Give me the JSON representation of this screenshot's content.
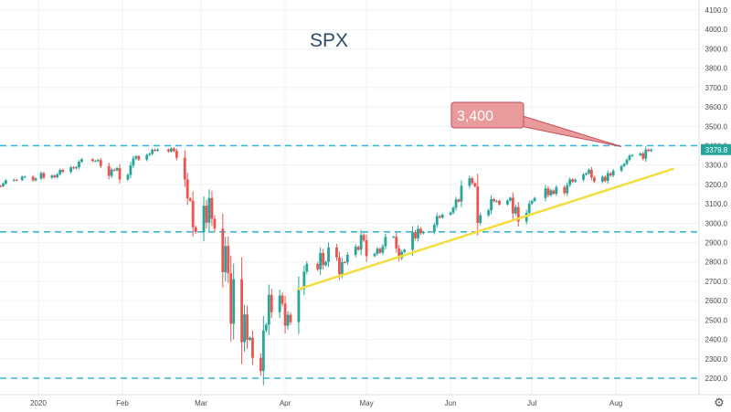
{
  "chart_data": {
    "type": "candlestick",
    "title": "SPX",
    "ylim": [
      2150,
      4150
    ],
    "yticks": [
      "4100.0",
      "4000.0",
      "3900.0",
      "3800.0",
      "3700.0",
      "3600.0",
      "3500.0",
      "3400.0",
      "3300.0",
      "3200.0",
      "3100.0",
      "3000.0",
      "2900.0",
      "2800.0",
      "2700.0",
      "2600.0",
      "2500.0",
      "2400.0",
      "2300.0",
      "2200.0"
    ],
    "xticks": [
      "2020",
      "Feb",
      "Mar",
      "Apr",
      "May",
      "Jun",
      "Jul",
      "Aug"
    ],
    "last_price": "3379.8",
    "horizontal_levels": [
      3400,
      2955,
      2200
    ],
    "trendline": {
      "from": [
        "2020-04-06",
        2660
      ],
      "to": [
        "2020-08-22",
        3280
      ]
    },
    "annotation": {
      "text": "3,400",
      "points_to": [
        "2020-08-03",
        3395
      ]
    },
    "series": [
      {
        "date": "2019-12-16",
        "close": 3191
      },
      {
        "date": "2019-12-17",
        "close": 3192
      },
      {
        "date": "2019-12-18",
        "close": 3191
      },
      {
        "date": "2019-12-19",
        "close": 3205
      },
      {
        "date": "2019-12-20",
        "close": 3221
      },
      {
        "date": "2019-12-23",
        "close": 3224
      },
      {
        "date": "2019-12-24",
        "close": 3223
      },
      {
        "date": "2019-12-26",
        "close": 3240
      },
      {
        "date": "2019-12-27",
        "close": 3240
      },
      {
        "date": "2019-12-30",
        "close": 3221
      },
      {
        "date": "2019-12-31",
        "close": 3231
      },
      {
        "date": "2020-01-02",
        "close": 3258
      },
      {
        "date": "2020-01-03",
        "close": 3235
      },
      {
        "date": "2020-01-06",
        "close": 3246
      },
      {
        "date": "2020-01-07",
        "close": 3237
      },
      {
        "date": "2020-01-08",
        "close": 3253
      },
      {
        "date": "2020-01-09",
        "close": 3275
      },
      {
        "date": "2020-01-10",
        "close": 3265
      },
      {
        "date": "2020-01-13",
        "close": 3288
      },
      {
        "date": "2020-01-14",
        "close": 3283
      },
      {
        "date": "2020-01-15",
        "close": 3289
      },
      {
        "date": "2020-01-16",
        "close": 3317
      },
      {
        "date": "2020-01-17",
        "close": 3330
      },
      {
        "date": "2020-01-21",
        "close": 3321
      },
      {
        "date": "2020-01-22",
        "close": 3321
      },
      {
        "date": "2020-01-23",
        "close": 3326
      },
      {
        "date": "2020-01-24",
        "close": 3295
      },
      {
        "date": "2020-01-27",
        "close": 3244
      },
      {
        "date": "2020-01-28",
        "close": 3276
      },
      {
        "date": "2020-01-29",
        "close": 3273
      },
      {
        "date": "2020-01-30",
        "close": 3284
      },
      {
        "date": "2020-01-31",
        "close": 3226
      },
      {
        "date": "2020-02-03",
        "close": 3249
      },
      {
        "date": "2020-02-04",
        "close": 3298
      },
      {
        "date": "2020-02-05",
        "close": 3334
      },
      {
        "date": "2020-02-06",
        "close": 3345
      },
      {
        "date": "2020-02-07",
        "close": 3328
      },
      {
        "date": "2020-02-10",
        "close": 3352
      },
      {
        "date": "2020-02-11",
        "close": 3358
      },
      {
        "date": "2020-02-12",
        "close": 3379
      },
      {
        "date": "2020-02-13",
        "close": 3374
      },
      {
        "date": "2020-02-14",
        "close": 3380
      },
      {
        "date": "2020-02-18",
        "close": 3370
      },
      {
        "date": "2020-02-19",
        "close": 3386
      },
      {
        "date": "2020-02-20",
        "close": 3373
      },
      {
        "date": "2020-02-21",
        "close": 3338
      },
      {
        "date": "2020-02-24",
        "close": 3226
      },
      {
        "date": "2020-02-25",
        "close": 3128
      },
      {
        "date": "2020-02-26",
        "close": 3116
      },
      {
        "date": "2020-02-27",
        "close": 2979
      },
      {
        "date": "2020-02-28",
        "close": 2954
      },
      {
        "date": "2020-03-02",
        "close": 3090
      },
      {
        "date": "2020-03-03",
        "close": 3003
      },
      {
        "date": "2020-03-04",
        "close": 3130
      },
      {
        "date": "2020-03-05",
        "close": 3023
      },
      {
        "date": "2020-03-06",
        "close": 2972
      },
      {
        "date": "2020-03-09",
        "close": 2747
      },
      {
        "date": "2020-03-10",
        "close": 2882
      },
      {
        "date": "2020-03-11",
        "close": 2741
      },
      {
        "date": "2020-03-12",
        "close": 2481
      },
      {
        "date": "2020-03-13",
        "close": 2711
      },
      {
        "date": "2020-03-16",
        "close": 2386
      },
      {
        "date": "2020-03-17",
        "close": 2529
      },
      {
        "date": "2020-03-18",
        "close": 2398
      },
      {
        "date": "2020-03-19",
        "close": 2409
      },
      {
        "date": "2020-03-20",
        "close": 2305
      },
      {
        "date": "2020-03-23",
        "close": 2237
      },
      {
        "date": "2020-03-24",
        "close": 2447
      },
      {
        "date": "2020-03-25",
        "close": 2476
      },
      {
        "date": "2020-03-26",
        "close": 2630
      },
      {
        "date": "2020-03-27",
        "close": 2541
      },
      {
        "date": "2020-03-30",
        "close": 2627
      },
      {
        "date": "2020-03-31",
        "close": 2585
      },
      {
        "date": "2020-04-01",
        "close": 2471
      },
      {
        "date": "2020-04-02",
        "close": 2527
      },
      {
        "date": "2020-04-03",
        "close": 2489
      },
      {
        "date": "2020-04-06",
        "close": 2664
      },
      {
        "date": "2020-04-07",
        "close": 2660
      },
      {
        "date": "2020-04-08",
        "close": 2750
      },
      {
        "date": "2020-04-09",
        "close": 2790
      },
      {
        "date": "2020-04-13",
        "close": 2762
      },
      {
        "date": "2020-04-14",
        "close": 2846
      },
      {
        "date": "2020-04-15",
        "close": 2783
      },
      {
        "date": "2020-04-16",
        "close": 2800
      },
      {
        "date": "2020-04-17",
        "close": 2875
      },
      {
        "date": "2020-04-20",
        "close": 2823
      },
      {
        "date": "2020-04-21",
        "close": 2737
      },
      {
        "date": "2020-04-22",
        "close": 2799
      },
      {
        "date": "2020-04-23",
        "close": 2798
      },
      {
        "date": "2020-04-24",
        "close": 2837
      },
      {
        "date": "2020-04-27",
        "close": 2878
      },
      {
        "date": "2020-04-28",
        "close": 2863
      },
      {
        "date": "2020-04-29",
        "close": 2939
      },
      {
        "date": "2020-04-30",
        "close": 2912
      },
      {
        "date": "2020-05-01",
        "close": 2830
      },
      {
        "date": "2020-05-04",
        "close": 2842
      },
      {
        "date": "2020-05-05",
        "close": 2868
      },
      {
        "date": "2020-05-06",
        "close": 2848
      },
      {
        "date": "2020-05-07",
        "close": 2881
      },
      {
        "date": "2020-05-08",
        "close": 2929
      },
      {
        "date": "2020-05-11",
        "close": 2930
      },
      {
        "date": "2020-05-12",
        "close": 2870
      },
      {
        "date": "2020-05-13",
        "close": 2820
      },
      {
        "date": "2020-05-14",
        "close": 2852
      },
      {
        "date": "2020-05-15",
        "close": 2863
      },
      {
        "date": "2020-05-18",
        "close": 2953
      },
      {
        "date": "2020-05-19",
        "close": 2922
      },
      {
        "date": "2020-05-20",
        "close": 2971
      },
      {
        "date": "2020-05-21",
        "close": 2948
      },
      {
        "date": "2020-05-22",
        "close": 2955
      },
      {
        "date": "2020-05-26",
        "close": 2991
      },
      {
        "date": "2020-05-27",
        "close": 3036
      },
      {
        "date": "2020-05-28",
        "close": 3029
      },
      {
        "date": "2020-05-29",
        "close": 3044
      },
      {
        "date": "2020-06-01",
        "close": 3055
      },
      {
        "date": "2020-06-02",
        "close": 3080
      },
      {
        "date": "2020-06-03",
        "close": 3122
      },
      {
        "date": "2020-06-04",
        "close": 3112
      },
      {
        "date": "2020-06-05",
        "close": 3193
      },
      {
        "date": "2020-06-08",
        "close": 3232
      },
      {
        "date": "2020-06-09",
        "close": 3207
      },
      {
        "date": "2020-06-10",
        "close": 3190
      },
      {
        "date": "2020-06-11",
        "close": 3002
      },
      {
        "date": "2020-06-12",
        "close": 3041
      },
      {
        "date": "2020-06-15",
        "close": 3066
      },
      {
        "date": "2020-06-16",
        "close": 3124
      },
      {
        "date": "2020-06-17",
        "close": 3113
      },
      {
        "date": "2020-06-18",
        "close": 3115
      },
      {
        "date": "2020-06-19",
        "close": 3097
      },
      {
        "date": "2020-06-22",
        "close": 3117
      },
      {
        "date": "2020-06-23",
        "close": 3131
      },
      {
        "date": "2020-06-24",
        "close": 3050
      },
      {
        "date": "2020-06-25",
        "close": 3083
      },
      {
        "date": "2020-06-26",
        "close": 3009
      },
      {
        "date": "2020-06-29",
        "close": 3053
      },
      {
        "date": "2020-06-30",
        "close": 3100
      },
      {
        "date": "2020-07-01",
        "close": 3115
      },
      {
        "date": "2020-07-02",
        "close": 3130
      },
      {
        "date": "2020-07-06",
        "close": 3179
      },
      {
        "date": "2020-07-07",
        "close": 3145
      },
      {
        "date": "2020-07-08",
        "close": 3169
      },
      {
        "date": "2020-07-09",
        "close": 3152
      },
      {
        "date": "2020-07-10",
        "close": 3185
      },
      {
        "date": "2020-07-13",
        "close": 3155
      },
      {
        "date": "2020-07-14",
        "close": 3197
      },
      {
        "date": "2020-07-15",
        "close": 3226
      },
      {
        "date": "2020-07-16",
        "close": 3215
      },
      {
        "date": "2020-07-17",
        "close": 3224
      },
      {
        "date": "2020-07-20",
        "close": 3251
      },
      {
        "date": "2020-07-21",
        "close": 3257
      },
      {
        "date": "2020-07-22",
        "close": 3276
      },
      {
        "date": "2020-07-23",
        "close": 3236
      },
      {
        "date": "2020-07-24",
        "close": 3215
      },
      {
        "date": "2020-07-27",
        "close": 3239
      },
      {
        "date": "2020-07-28",
        "close": 3218
      },
      {
        "date": "2020-07-29",
        "close": 3258
      },
      {
        "date": "2020-07-30",
        "close": 3246
      },
      {
        "date": "2020-07-31",
        "close": 3271
      },
      {
        "date": "2020-08-03",
        "close": 3294
      },
      {
        "date": "2020-08-04",
        "close": 3306
      },
      {
        "date": "2020-08-05",
        "close": 3327
      },
      {
        "date": "2020-08-06",
        "close": 3349
      },
      {
        "date": "2020-08-07",
        "close": 3351
      },
      {
        "date": "2020-08-10",
        "close": 3360
      },
      {
        "date": "2020-08-11",
        "close": 3333
      },
      {
        "date": "2020-08-12",
        "close": 3380
      },
      {
        "date": "2020-08-13",
        "close": 3373
      },
      {
        "date": "2020-08-14",
        "close": 3379.8
      }
    ]
  },
  "ui": {
    "settings_icon": "gear-icon",
    "colors": {
      "up": "#26a69a",
      "down": "#ef5350",
      "level_line": "#3cb6d6",
      "trendline": "#f5dd3d",
      "callout_fill": "#e99a9a",
      "callout_stroke": "#c0505a",
      "price_tag": "#26a69a",
      "grid": "#eef1f4"
    }
  }
}
